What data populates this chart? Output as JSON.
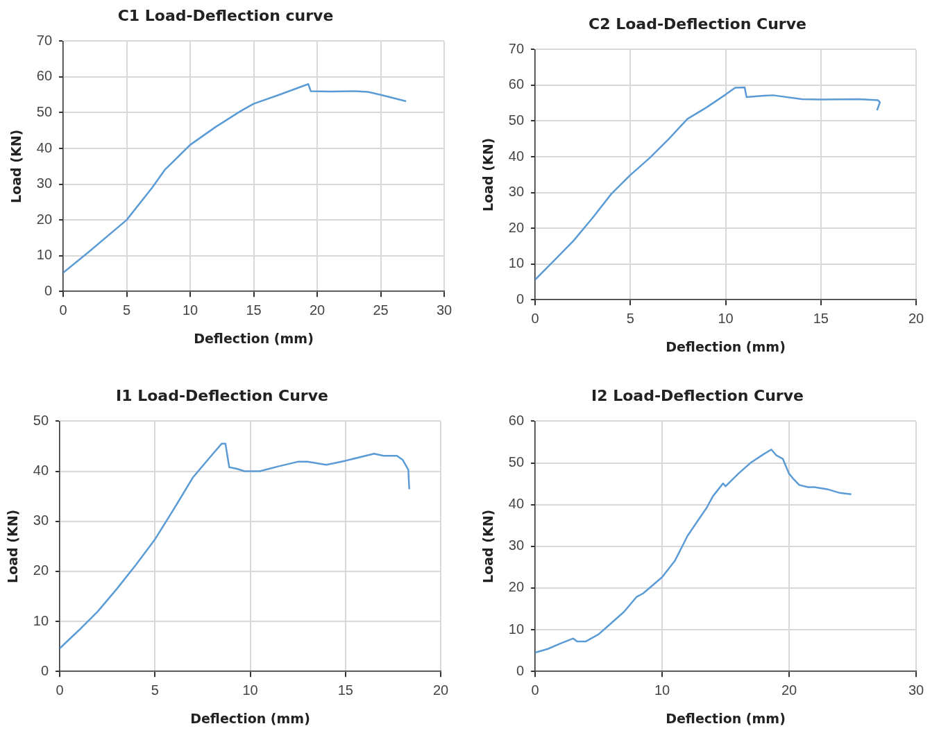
{
  "chart_data": [
    {
      "type": "line",
      "title": "C1 Load-Deflection curve",
      "xlabel": "Deflection (mm)",
      "ylabel": "Load (KN)",
      "xlim": [
        0,
        30
      ],
      "ylim": [
        0,
        70
      ],
      "xticks": [
        0,
        5,
        10,
        15,
        20,
        25,
        30
      ],
      "yticks": [
        0,
        10,
        20,
        30,
        40,
        50,
        60,
        70
      ],
      "grid": true,
      "legend": false,
      "marker": "none",
      "series": [
        {
          "color": "#5b9bd5",
          "x": [
            0,
            2,
            5,
            7,
            8,
            10,
            12,
            14,
            15,
            17,
            19.3,
            19.5,
            21,
            23,
            24,
            25,
            27
          ],
          "values": [
            5.2,
            11,
            20,
            29,
            34,
            41,
            46,
            50.5,
            52.5,
            55,
            58,
            56,
            55.9,
            56,
            55.8,
            55,
            53.2
          ]
        }
      ]
    },
    {
      "type": "line",
      "title": "C2 Load-Deflection Curve",
      "xlabel": "Deflection (mm)",
      "ylabel": "Load (KN)",
      "xlim": [
        0,
        20
      ],
      "ylim": [
        0,
        70
      ],
      "xticks": [
        0,
        5,
        10,
        15,
        20
      ],
      "yticks": [
        0,
        10,
        20,
        30,
        40,
        50,
        60,
        70
      ],
      "grid": true,
      "legend": false,
      "marker": "none",
      "series": [
        {
          "color": "#5b9bd5",
          "x": [
            0,
            1,
            2,
            3,
            4,
            5,
            6,
            7,
            8,
            9,
            10,
            10.5,
            11,
            11.1,
            12,
            12.5,
            14,
            15,
            17,
            18,
            18.1,
            17.95
          ],
          "values": [
            5.6,
            11,
            16.4,
            22.8,
            29.6,
            34.9,
            39.6,
            44.9,
            50.6,
            53.8,
            57.4,
            59.3,
            59.4,
            56.7,
            57.1,
            57.2,
            56.1,
            56,
            56.1,
            55.8,
            55.2,
            53
          ]
        }
      ]
    },
    {
      "type": "line",
      "title": "I1 Load-Deflection Curve",
      "xlabel": "Deflection (mm)",
      "ylabel": "Load (KN)",
      "xlim": [
        0,
        20
      ],
      "ylim": [
        0,
        50
      ],
      "xticks": [
        0,
        5,
        10,
        15,
        20
      ],
      "yticks": [
        0,
        10,
        20,
        30,
        40,
        50
      ],
      "grid": true,
      "legend": false,
      "marker": "none",
      "series": [
        {
          "color": "#5b9bd5",
          "x": [
            0,
            1,
            2,
            3,
            4,
            5,
            6,
            7,
            8,
            8.5,
            8.7,
            8.9,
            9.3,
            9.7,
            10.5,
            11.5,
            12.5,
            13,
            14,
            15,
            16.5,
            17,
            17.7,
            18,
            18.3,
            18.35
          ],
          "values": [
            4.6,
            8.2,
            12,
            16.5,
            21.3,
            26.4,
            32.5,
            38.8,
            43.3,
            45.5,
            45.5,
            40.8,
            40.5,
            40,
            40,
            41,
            41.9,
            41.9,
            41.3,
            42.1,
            43.5,
            43.1,
            43.1,
            42.3,
            40.3,
            36.4
          ]
        }
      ]
    },
    {
      "type": "line",
      "title": "I2 Load-Deflection Curve",
      "xlabel": "Deflection (mm)",
      "ylabel": "Load (KN)",
      "xlim": [
        0,
        30
      ],
      "ylim": [
        0,
        60
      ],
      "xticks": [
        0,
        10,
        20,
        30
      ],
      "yticks": [
        0,
        10,
        20,
        30,
        40,
        50,
        60
      ],
      "grid": true,
      "legend": false,
      "marker": "none",
      "series": [
        {
          "color": "#5b9bd5",
          "x": [
            0,
            1,
            2,
            3,
            3.3,
            4,
            5,
            6,
            7,
            8,
            8.5,
            9,
            10,
            11,
            11.6,
            12,
            13,
            13.5,
            14,
            14.8,
            15,
            16,
            17,
            18,
            18.6,
            19,
            19.5,
            20,
            20.3,
            20.8,
            21.5,
            22,
            23,
            24,
            24.9
          ],
          "values": [
            4.5,
            5.4,
            6.7,
            7.9,
            7.2,
            7.2,
            8.9,
            11.6,
            14.3,
            17.9,
            18.7,
            20,
            22.6,
            26.5,
            30.1,
            32.5,
            37,
            39.2,
            42,
            45.1,
            44.4,
            47.4,
            50.1,
            52.1,
            53.2,
            51.8,
            51,
            47.4,
            46.3,
            44.7,
            44.2,
            44.2,
            43.7,
            42.8,
            42.5
          ]
        }
      ]
    }
  ]
}
